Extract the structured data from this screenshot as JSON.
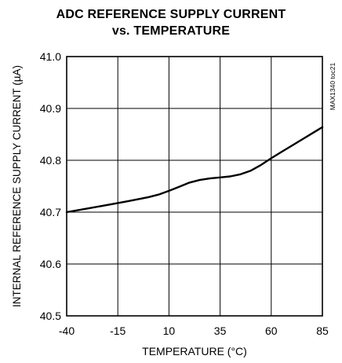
{
  "chart_data": {
    "type": "line",
    "title": [
      "ADC REFERENCE SUPPLY CURRENT",
      "vs. TEMPERATURE"
    ],
    "xlabel": "TEMPERATURE (°C)",
    "ylabel": "INTERNAL REFERENCE SUPPLY CURRENT (µA)",
    "annotation": "MAX1340 toc21",
    "xlim": [
      -40,
      85
    ],
    "ylim": [
      40.5,
      41.0
    ],
    "xticks": [
      "-40",
      "-15",
      "10",
      "35",
      "60",
      "85"
    ],
    "yticks": [
      "41.0",
      "40.9",
      "40.8",
      "40.7",
      "40.6",
      "40.5"
    ],
    "grid": true,
    "series": [
      {
        "x": [
          -40,
          -30,
          -20,
          -10,
          0,
          5,
          10,
          15,
          20,
          25,
          30,
          35,
          40,
          45,
          50,
          55,
          60,
          65,
          70,
          75,
          80,
          85
        ],
        "values": [
          40.7,
          40.707,
          40.714,
          40.721,
          40.729,
          40.734,
          40.741,
          40.749,
          40.757,
          40.762,
          40.765,
          40.767,
          40.769,
          40.773,
          40.78,
          40.791,
          40.804,
          40.816,
          40.828,
          40.84,
          40.852,
          40.864
        ]
      }
    ]
  }
}
